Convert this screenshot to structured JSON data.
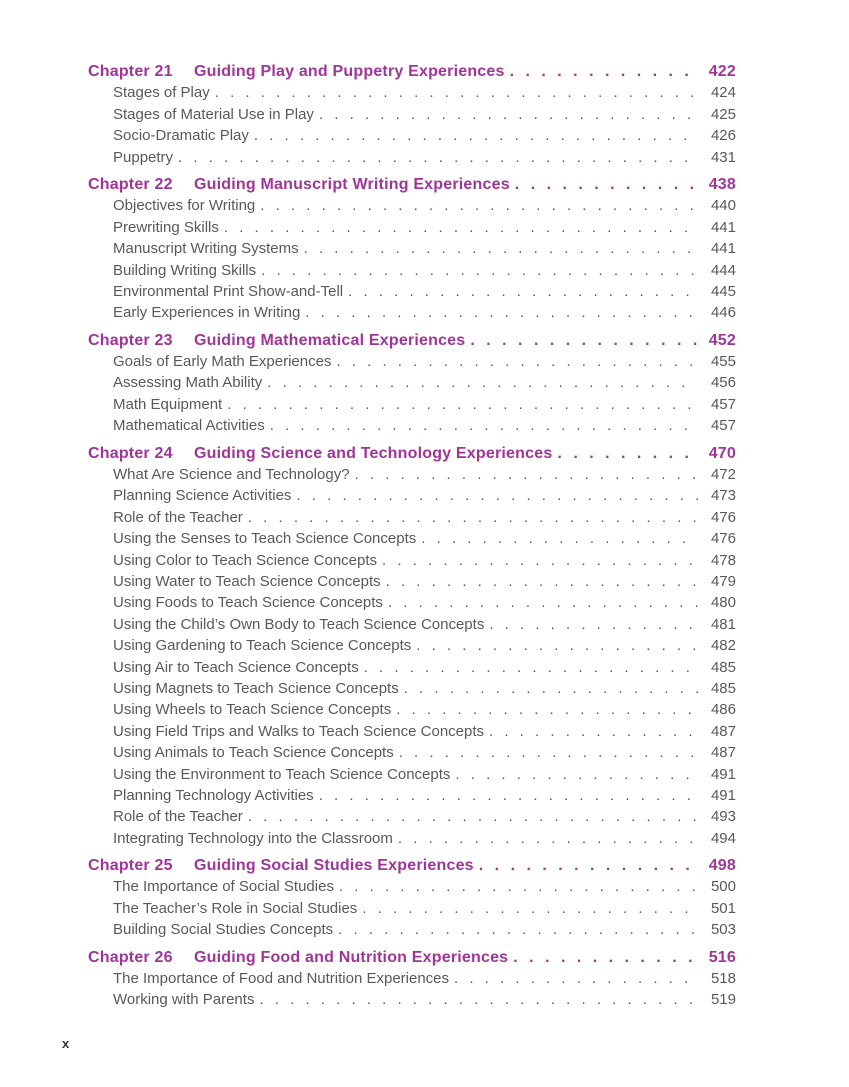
{
  "colors": {
    "background": "#ffffff",
    "chapter_accent": "#a03598",
    "body_text": "#58595b",
    "footer_text": "#333333"
  },
  "footer": {
    "page_number": "x"
  },
  "toc": {
    "sections": [
      {
        "label": "Chapter 21",
        "title": "Guiding Play and Puppetry Experiences",
        "page": "422",
        "entries": [
          {
            "title": "Stages of Play",
            "page": "424"
          },
          {
            "title": "Stages of Material Use in Play",
            "page": "425"
          },
          {
            "title": "Socio-Dramatic Play",
            "page": "426"
          },
          {
            "title": "Puppetry",
            "page": "431"
          }
        ]
      },
      {
        "label": "Chapter 22",
        "title": "Guiding Manuscript Writing Experiences",
        "page": "438",
        "entries": [
          {
            "title": "Objectives for Writing",
            "page": "440"
          },
          {
            "title": "Prewriting Skills",
            "page": "441"
          },
          {
            "title": "Manuscript Writing Systems",
            "page": "441"
          },
          {
            "title": "Building Writing Skills",
            "page": "444"
          },
          {
            "title": "Environmental Print Show-and-Tell",
            "page": "445"
          },
          {
            "title": "Early Experiences in Writing",
            "page": "446"
          }
        ]
      },
      {
        "label": "Chapter 23",
        "title": "Guiding Mathematical Experiences",
        "page": "452",
        "entries": [
          {
            "title": "Goals of Early Math Experiences",
            "page": "455"
          },
          {
            "title": "Assessing Math Ability",
            "page": "456"
          },
          {
            "title": "Math Equipment",
            "page": "457"
          },
          {
            "title": "Mathematical Activities",
            "page": "457"
          }
        ]
      },
      {
        "label": "Chapter 24",
        "title": "Guiding Science and Technology Experiences",
        "page": "470",
        "entries": [
          {
            "title": "What Are Science and Technology?",
            "page": "472"
          },
          {
            "title": "Planning Science Activities",
            "page": "473"
          },
          {
            "title": "Role of the Teacher",
            "page": "476"
          },
          {
            "title": "Using the Senses to Teach Science Concepts",
            "page": "476"
          },
          {
            "title": "Using Color to Teach Science Concepts",
            "page": "478"
          },
          {
            "title": "Using Water to Teach Science Concepts",
            "page": "479"
          },
          {
            "title": "Using Foods to Teach Science Concepts",
            "page": "480"
          },
          {
            "title": "Using the Child’s Own Body to Teach Science Concepts",
            "page": "481"
          },
          {
            "title": "Using Gardening to Teach Science Concepts",
            "page": "482"
          },
          {
            "title": "Using Air to Teach Science Concepts",
            "page": "485"
          },
          {
            "title": "Using Magnets to Teach Science Concepts",
            "page": "485"
          },
          {
            "title": "Using Wheels to Teach Science Concepts",
            "page": "486"
          },
          {
            "title": "Using Field Trips and Walks to Teach Science Concepts",
            "page": "487"
          },
          {
            "title": "Using Animals to Teach Science Concepts",
            "page": "487"
          },
          {
            "title": "Using the Environment to Teach Science Concepts",
            "page": "491"
          },
          {
            "title": "Planning Technology Activities",
            "page": "491"
          },
          {
            "title": "Role of the Teacher",
            "page": "493"
          },
          {
            "title": "Integrating Technology into the Classroom",
            "page": "494"
          }
        ]
      },
      {
        "label": "Chapter 25",
        "title": "Guiding Social Studies Experiences",
        "page": "498",
        "entries": [
          {
            "title": "The Importance of Social Studies",
            "page": "500"
          },
          {
            "title": "The Teacher’s Role in Social Studies",
            "page": "501"
          },
          {
            "title": "Building Social Studies Concepts",
            "page": "503"
          }
        ]
      },
      {
        "label": "Chapter 26",
        "title": "Guiding Food and Nutrition Experiences",
        "page": "516",
        "entries": [
          {
            "title": "The Importance of Food and Nutrition Experiences",
            "page": "518"
          },
          {
            "title": "Working with Parents",
            "page": "519"
          }
        ]
      }
    ]
  }
}
